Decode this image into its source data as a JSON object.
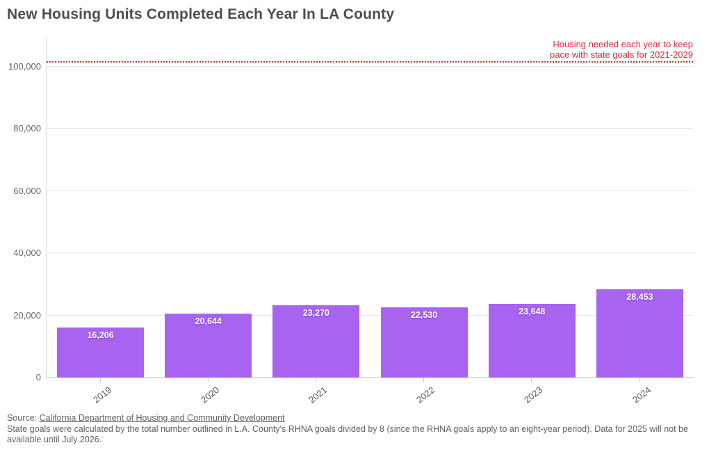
{
  "header": {
    "title": "New Housing Units Completed Each Year In LA County"
  },
  "goal_annotation": {
    "line1": "Housing needed each year to keep",
    "line2": "pace with state goals for 2021-2029"
  },
  "chart_data": {
    "type": "bar",
    "title": "New Housing Units Completed Each Year In LA County",
    "categories": [
      "2019",
      "2020",
      "2021",
      "2022",
      "2023",
      "2024"
    ],
    "values": [
      16206,
      20644,
      23270,
      22530,
      23648,
      28453
    ],
    "value_labels": [
      "16,206",
      "20,644",
      "23,270",
      "22,530",
      "23,648",
      "28,453"
    ],
    "xlabel": "",
    "ylabel": "",
    "ylim": [
      0,
      109000
    ],
    "yticks": [
      0,
      20000,
      40000,
      60000,
      80000,
      100000
    ],
    "ytick_labels": [
      "0",
      "20,000",
      "40,000",
      "60,000",
      "80,000",
      "100,000"
    ],
    "grid": true,
    "legend": "none",
    "bar_color": "#a963f1",
    "goal_line": {
      "value": 101508,
      "label": "Housing needed each year to keep pace with state goals for 2021-2029",
      "color": "#dc2c3e",
      "style": "dotted"
    }
  },
  "footer": {
    "source_prefix": "Source: ",
    "source_link_label": "California Department of Housing and Community Development",
    "note": "State goals were calculated by the total number outlined in L.A. County's RHNA goals divided by 8 (since the RHNA goals apply to an eight-year period). Data for 2025 will not be available until July 2026."
  }
}
